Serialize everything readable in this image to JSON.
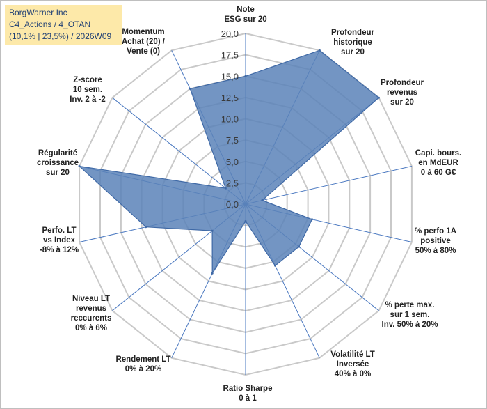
{
  "title_box": {
    "line1": "BorgWarner Inc",
    "line2": "C4_Actions / 4_OTAN",
    "line3": "(10,1% | 23,5%) / 2026W09"
  },
  "chart_data": {
    "type": "radar",
    "rmax": 20,
    "tick_values": [
      0,
      2.5,
      5,
      7.5,
      10,
      12.5,
      15,
      17.5,
      20
    ],
    "tick_labels": [
      "0,0",
      "2,5",
      "5,0",
      "7,5",
      "10,0",
      "12,5",
      "15,0",
      "17,5",
      "20,0"
    ],
    "colors": {
      "fill": "#5b82b8",
      "stroke": "#3f69a6",
      "grid": "#c9c9c9",
      "spoke": "#4a78c0"
    },
    "axes": [
      {
        "label_lines": [
          "Note",
          "ESG sur 20"
        ],
        "value": 15
      },
      {
        "label_lines": [
          "Profondeur",
          "historique",
          "sur 20"
        ],
        "value": 20
      },
      {
        "label_lines": [
          "Profondeur",
          "revenus",
          "sur 20"
        ],
        "value": 20
      },
      {
        "label_lines": [
          "Capi. bours.",
          "en MdEUR",
          "0 à 60 G€"
        ],
        "value": 2
      },
      {
        "label_lines": [
          "% perfo 1A",
          "positive",
          "50% à 80%"
        ],
        "value": 8
      },
      {
        "label_lines": [
          "% perte max.",
          "sur 1 sem.",
          "Inv. 50% à 20%"
        ],
        "value": 8
      },
      {
        "label_lines": [
          "Volatilité LT",
          "Inversée",
          "40% à 0%"
        ],
        "value": 8
      },
      {
        "label_lines": [
          "Ratio Sharpe",
          "0 à 1"
        ],
        "value": 2
      },
      {
        "label_lines": [
          "Rendement LT",
          "0% à 20%"
        ],
        "value": 9
      },
      {
        "label_lines": [
          "Niveau LT",
          "revenus",
          "reccurents",
          "0% à 6%"
        ],
        "value": 5
      },
      {
        "label_lines": [
          "Perfo. LT",
          "vs Index",
          "-8% à 12%"
        ],
        "value": 12
      },
      {
        "label_lines": [
          "Régularité",
          "croissance",
          "sur 20"
        ],
        "value": 20
      },
      {
        "label_lines": [
          "Z-score",
          "10 sem.",
          "Inv. 2 à -2"
        ],
        "value": 3
      },
      {
        "label_lines": [
          "Momentum",
          "Achat (20) /",
          "Vente (0)"
        ],
        "value": 15
      }
    ]
  }
}
